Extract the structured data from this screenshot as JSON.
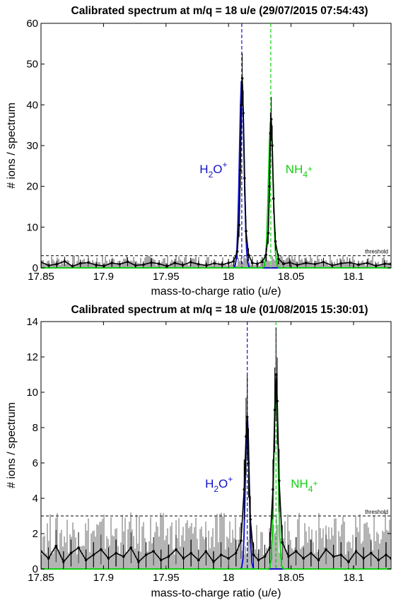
{
  "chart_data": [
    {
      "type": "line",
      "title": "Calibrated spectrum at m/q = 18 u/e (29/07/2015 07:54:43)",
      "xlabel": "mass-to-charge ratio (u/e)",
      "ylabel": "# ions / spectrum",
      "xlim": [
        17.85,
        18.13
      ],
      "ylim": [
        0,
        60
      ],
      "xticks": [
        17.85,
        17.9,
        17.95,
        18,
        18.05,
        18.1
      ],
      "xtick_labels": [
        "17.85",
        "17.9",
        "17.95",
        "18",
        "18.05",
        "18.1"
      ],
      "yticks": [
        0,
        10,
        20,
        30,
        40,
        50,
        60
      ],
      "ytick_labels": [
        "0",
        "10",
        "20",
        "30",
        "40",
        "50",
        "60"
      ],
      "grid": false,
      "threshold": {
        "value": 3,
        "label": "threshold",
        "color": "#000000"
      },
      "peaks": [
        {
          "base": "H",
          "sub": "2",
          "rest": "O",
          "sup": "+",
          "center": 18.0106,
          "height": 46.5,
          "width": 0.0018,
          "color": "#1010c8"
        },
        {
          "base": "NH",
          "sub": "4",
          "rest": "",
          "sup": "+",
          "center": 18.0338,
          "height": 36.5,
          "width": 0.0018,
          "color": "#10d010"
        }
      ],
      "series": [
        {
          "x": [
            17.85,
            17.8563,
            17.8626,
            17.8689,
            17.8752,
            17.8815,
            17.8878,
            17.8941,
            17.9004,
            17.9067,
            17.913,
            17.9193,
            17.9256,
            17.9319,
            17.9382,
            17.9445,
            17.9508,
            17.9571,
            17.9634,
            17.9697,
            17.976,
            17.9823,
            17.9886,
            17.9949,
            18.0,
            18.004,
            18.007,
            18.0085,
            18.0095,
            18.0103,
            18.011,
            18.0118,
            18.0128,
            18.014,
            18.016,
            18.019,
            18.023,
            18.027,
            18.03,
            18.0318,
            18.0328,
            18.0335,
            18.0342,
            18.035,
            18.036,
            18.0375,
            18.04,
            18.044,
            18.049,
            18.055,
            18.062,
            18.069,
            18.076,
            18.083,
            18.09,
            18.097,
            18.104,
            18.111,
            18.118,
            18.125,
            18.13
          ],
          "y": [
            1.4,
            0.6,
            0.9,
            1.6,
            0.4,
            1.1,
            1.3,
            0.7,
            0.5,
            1.2,
            0.9,
            1.5,
            0.6,
            0.8,
            1.3,
            1.0,
            0.4,
            1.2,
            0.7,
            1.4,
            0.9,
            0.6,
            1.1,
            0.8,
            1.2,
            1.6,
            4.0,
            10.5,
            24.0,
            40.0,
            46.5,
            38.0,
            22.0,
            9.0,
            3.2,
            1.2,
            1.0,
            1.5,
            3.2,
            8.5,
            20.0,
            33.0,
            36.5,
            30.0,
            17.0,
            6.5,
            2.2,
            1.0,
            1.3,
            0.7,
            1.2,
            0.9,
            1.4,
            0.6,
            1.1,
            1.3,
            0.8,
            1.2,
            0.5,
            1.0,
            0.9
          ]
        }
      ]
    },
    {
      "type": "line",
      "title": "Calibrated spectrum at m/q = 18 u/e (01/08/2015 15:30:01)",
      "xlabel": "mass-to-charge ratio (u/e)",
      "ylabel": "# ions / spectrum",
      "xlim": [
        17.85,
        18.13
      ],
      "ylim": [
        0,
        14
      ],
      "xticks": [
        17.85,
        17.9,
        17.95,
        18,
        18.05,
        18.1
      ],
      "xtick_labels": [
        "17.85",
        "17.9",
        "17.95",
        "18",
        "18.05",
        "18.1"
      ],
      "yticks": [
        0,
        2,
        4,
        6,
        8,
        10,
        12,
        14
      ],
      "ytick_labels": [
        "0",
        "2",
        "4",
        "6",
        "8",
        "10",
        "12",
        "14"
      ],
      "grid": false,
      "threshold": {
        "value": 3,
        "label": "threshold",
        "color": "#000000"
      },
      "peaks": [
        {
          "base": "H",
          "sub": "2",
          "rest": "O",
          "sup": "+",
          "center": 18.015,
          "height": 8.6,
          "width": 0.0015,
          "color": "#1010c8"
        },
        {
          "base": "NH",
          "sub": "4",
          "rest": "",
          "sup": "+",
          "center": 18.038,
          "height": 11.0,
          "width": 0.0016,
          "color": "#10d010"
        }
      ],
      "series": [
        {
          "x": [
            17.85,
            17.856,
            17.862,
            17.868,
            17.874,
            17.88,
            17.886,
            17.892,
            17.898,
            17.904,
            17.91,
            17.916,
            17.922,
            17.928,
            17.934,
            17.94,
            17.946,
            17.952,
            17.958,
            17.964,
            17.97,
            17.976,
            17.982,
            17.988,
            17.994,
            18.0,
            18.006,
            18.01,
            18.0125,
            18.014,
            18.015,
            18.016,
            18.0175,
            18.02,
            18.024,
            18.029,
            18.033,
            18.0355,
            18.037,
            18.038,
            18.039,
            18.0405,
            18.043,
            18.048,
            18.054,
            18.06,
            18.066,
            18.072,
            18.078,
            18.084,
            18.09,
            18.096,
            18.102,
            18.108,
            18.114,
            18.12,
            18.126,
            18.13
          ],
          "y": [
            1.0,
            0.6,
            1.3,
            0.4,
            0.9,
            1.2,
            0.5,
            0.8,
            1.1,
            0.6,
            0.9,
            0.7,
            1.2,
            0.4,
            0.8,
            1.0,
            0.5,
            0.7,
            1.1,
            0.6,
            0.9,
            0.5,
            1.0,
            0.4,
            0.8,
            0.6,
            0.9,
            1.6,
            4.5,
            7.5,
            8.6,
            6.0,
            2.8,
            0.8,
            0.5,
            0.7,
            1.2,
            4.5,
            9.0,
            11.0,
            9.5,
            5.0,
            1.5,
            0.7,
            1.0,
            0.6,
            0.9,
            0.5,
            1.1,
            0.7,
            0.8,
            0.4,
            1.0,
            0.6,
            0.9,
            0.5,
            0.8,
            0.6
          ]
        }
      ]
    }
  ]
}
